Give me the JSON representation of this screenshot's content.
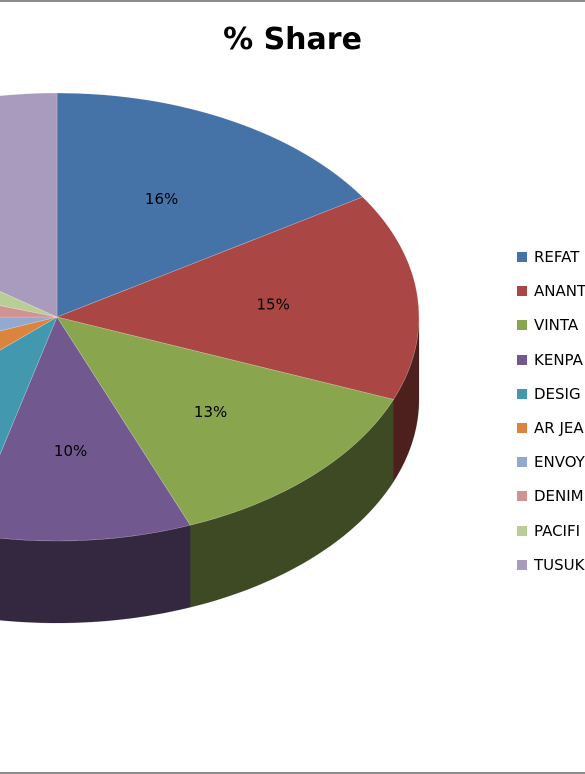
{
  "chart_data": {
    "type": "pie",
    "title": "% Share",
    "slices": [
      {
        "label": "REFAT",
        "value": 16,
        "display": "16%",
        "color": "#4572A7"
      },
      {
        "label": "ANANT",
        "value": 15,
        "display": "15%",
        "color": "#AA4643"
      },
      {
        "label": "VINTA",
        "value": 13,
        "display": "13%",
        "color": "#89A54E"
      },
      {
        "label": "KENPA",
        "value": 10,
        "display": "10%",
        "color": "#71588F"
      },
      {
        "label": "DESIG",
        "value": 9,
        "display": "",
        "color": "#4198AF"
      },
      {
        "label": "AR JEA",
        "value": 6,
        "display": "",
        "color": "#DB843D"
      },
      {
        "label": "ENVOY",
        "value": 6,
        "display": "",
        "color": "#93A9CF"
      },
      {
        "label": "DENIM",
        "value": 5,
        "display": "",
        "color": "#D19392"
      },
      {
        "label": "PACIFI",
        "value": 5,
        "display": "",
        "color": "#B9CD96"
      },
      {
        "label": "TUSUK",
        "value": 15,
        "display": "%",
        "color": "#A99BBD"
      }
    ],
    "legend_position": "right"
  }
}
